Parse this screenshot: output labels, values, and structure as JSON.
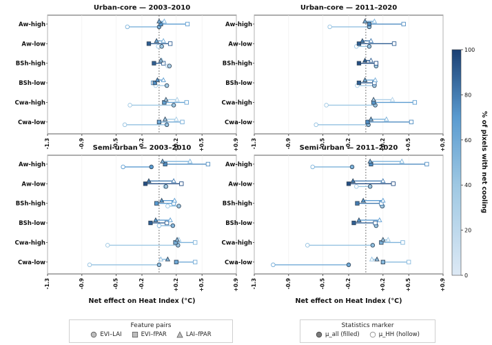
{
  "colorbar": {
    "label": "% of pixels with net cooling",
    "ticks": [
      0,
      20,
      40,
      60,
      80,
      100
    ],
    "min": 0,
    "max": 100,
    "color_low": "#dde9f5",
    "color_high": "#1a3f73"
  },
  "legend_features": {
    "title": "Feature pairs",
    "items": [
      {
        "label": "EVI–LAI",
        "marker": "circle"
      },
      {
        "label": "EVI–fPAR",
        "marker": "square"
      },
      {
        "label": "LAI–fPAR",
        "marker": "triangle"
      }
    ]
  },
  "legend_stats": {
    "title": "Statistics marker",
    "items": [
      {
        "label": "μ_all (filled)",
        "marker": "filled-circle"
      },
      {
        "label": "μ_HH (hollow)",
        "marker": "hollow-circle"
      }
    ]
  },
  "chart_data": [
    {
      "type": "dot-range",
      "title": "Urban-core — 2003–2010",
      "xlabel": "",
      "xlim": [
        -1.3,
        0.9
      ],
      "xticks": [
        "-1.3",
        "-0.9",
        "-0.5",
        "-0.2",
        "+0.2",
        "+0.5",
        "+0.9"
      ],
      "categories": [
        "Aw-high",
        "Aw-low",
        "BSh-high",
        "BSh-low",
        "Cwa-high",
        "Cwa-low"
      ],
      "series": [
        {
          "pair": "EVI-LAI",
          "mu_all": [
            0.0,
            0.03,
            0.12,
            0.09,
            0.17,
            0.09
          ],
          "mu_hh": [
            -0.37,
            -0.01,
            0.1,
            -0.04,
            -0.34,
            -0.4
          ],
          "pct": [
            55,
            40,
            30,
            35,
            40,
            45
          ]
        },
        {
          "pair": "EVI-fPAR",
          "mu_all": [
            0.02,
            -0.12,
            -0.06,
            -0.05,
            0.06,
            0.0
          ],
          "mu_hh": [
            0.33,
            0.13,
            0.05,
            -0.07,
            0.32,
            0.27
          ],
          "pct": [
            70,
            90,
            90,
            75,
            65,
            60
          ]
        },
        {
          "pair": "LAI-fPAR",
          "mu_all": [
            0.0,
            -0.03,
            0.02,
            -0.02,
            0.08,
            0.07
          ],
          "mu_hh": [
            0.06,
            0.05,
            0.03,
            0.05,
            0.21,
            0.2
          ],
          "pct": [
            55,
            60,
            45,
            70,
            35,
            35
          ]
        }
      ]
    },
    {
      "type": "dot-range",
      "title": "Urban-core — 2011–2020",
      "xlabel": "",
      "xlim": [
        -1.3,
        0.9
      ],
      "xticks": [
        "-1.3",
        "-0.9",
        "-0.5",
        "-0.2",
        "+0.2",
        "+0.5",
        "+0.9"
      ],
      "categories": [
        "Aw-high",
        "Aw-low",
        "BSh-high",
        "BSh-low",
        "Cwa-high",
        "Cwa-low"
      ],
      "series": [
        {
          "pair": "EVI-LAI",
          "mu_all": [
            0.04,
            0.04,
            0.12,
            0.1,
            0.11,
            0.03
          ],
          "mu_hh": [
            -0.42,
            -0.11,
            0.12,
            -0.1,
            -0.46,
            -0.58
          ],
          "pct": [
            45,
            40,
            35,
            35,
            40,
            45
          ]
        },
        {
          "pair": "EVI-fPAR",
          "mu_all": [
            0.04,
            -0.08,
            -0.08,
            -0.08,
            0.09,
            0.02
          ],
          "mu_hh": [
            0.44,
            0.33,
            0.12,
            0.1,
            0.57,
            0.53
          ],
          "pct": [
            75,
            90,
            95,
            90,
            70,
            75
          ]
        },
        {
          "pair": "LAI-fPAR",
          "mu_all": [
            -0.01,
            -0.04,
            -0.01,
            -0.01,
            0.09,
            0.06
          ],
          "mu_hh": [
            0.1,
            0.06,
            0.06,
            0.11,
            0.31,
            0.24
          ],
          "pct": [
            55,
            80,
            90,
            60,
            30,
            55
          ]
        }
      ]
    },
    {
      "type": "dot-range",
      "title": "Semi-urban — 2003–2010",
      "xlabel": "Net effect on Heat Index (°C)",
      "xlim": [
        -1.3,
        0.9
      ],
      "xticks": [
        "-1.3",
        "-0.9",
        "-0.5",
        "-0.2",
        "+0.2",
        "+0.5",
        "+0.9"
      ],
      "categories": [
        "Aw-high",
        "Aw-low",
        "BSh-high",
        "BSh-low",
        "Cwa-high",
        "Cwa-low"
      ],
      "series": [
        {
          "pair": "EVI-LAI",
          "mu_all": [
            -0.09,
            0.08,
            0.23,
            0.16,
            0.22,
            0.0
          ],
          "mu_hh": [
            -0.42,
            0.07,
            0.1,
            0.0,
            -0.6,
            -0.81
          ],
          "pct": [
            70,
            35,
            40,
            50,
            40,
            45
          ]
        },
        {
          "pair": "EVI-fPAR",
          "mu_all": [
            0.07,
            -0.16,
            -0.03,
            -0.1,
            0.19,
            0.2
          ],
          "mu_hh": [
            0.57,
            0.26,
            0.17,
            0.09,
            0.42,
            0.42
          ],
          "pct": [
            75,
            95,
            70,
            90,
            55,
            60
          ]
        },
        {
          "pair": "LAI-fPAR",
          "mu_all": [
            0.04,
            -0.12,
            0.03,
            -0.04,
            0.21,
            0.1
          ],
          "mu_hh": [
            0.36,
            0.17,
            0.18,
            0.13,
            0.23,
            0.02
          ],
          "pct": [
            55,
            80,
            70,
            70,
            45,
            50
          ]
        }
      ]
    },
    {
      "type": "dot-range",
      "title": "Semi-urban — 2011–2020",
      "xlabel": "Net effect on Heat Index (°C)",
      "xlim": [
        -1.3,
        0.9
      ],
      "xticks": [
        "-1.3",
        "-0.9",
        "-0.5",
        "-0.2",
        "+0.2",
        "+0.5",
        "+0.9"
      ],
      "categories": [
        "Aw-high",
        "Aw-low",
        "BSh-high",
        "BSh-low",
        "Cwa-high",
        "Cwa-low"
      ],
      "series": [
        {
          "pair": "EVI-LAI",
          "mu_all": [
            -0.16,
            0.05,
            0.19,
            0.12,
            0.08,
            -0.2
          ],
          "mu_hh": [
            -0.62,
            -0.11,
            0.2,
            0.12,
            -0.68,
            -1.08
          ],
          "pct": [
            55,
            40,
            35,
            40,
            45,
            60
          ]
        },
        {
          "pair": "EVI-fPAR",
          "mu_all": [
            0.06,
            -0.2,
            -0.1,
            -0.14,
            0.18,
            0.2
          ],
          "mu_hh": [
            0.71,
            0.32,
            0.18,
            0.11,
            0.43,
            0.5
          ],
          "pct": [
            75,
            95,
            80,
            90,
            55,
            50
          ]
        },
        {
          "pair": "LAI-fPAR",
          "mu_all": [
            0.05,
            -0.15,
            -0.03,
            -0.08,
            0.2,
            0.13
          ],
          "mu_hh": [
            0.42,
            0.2,
            0.2,
            0.16,
            0.26,
            0.07
          ],
          "pct": [
            55,
            80,
            70,
            70,
            40,
            45
          ]
        }
      ]
    }
  ]
}
